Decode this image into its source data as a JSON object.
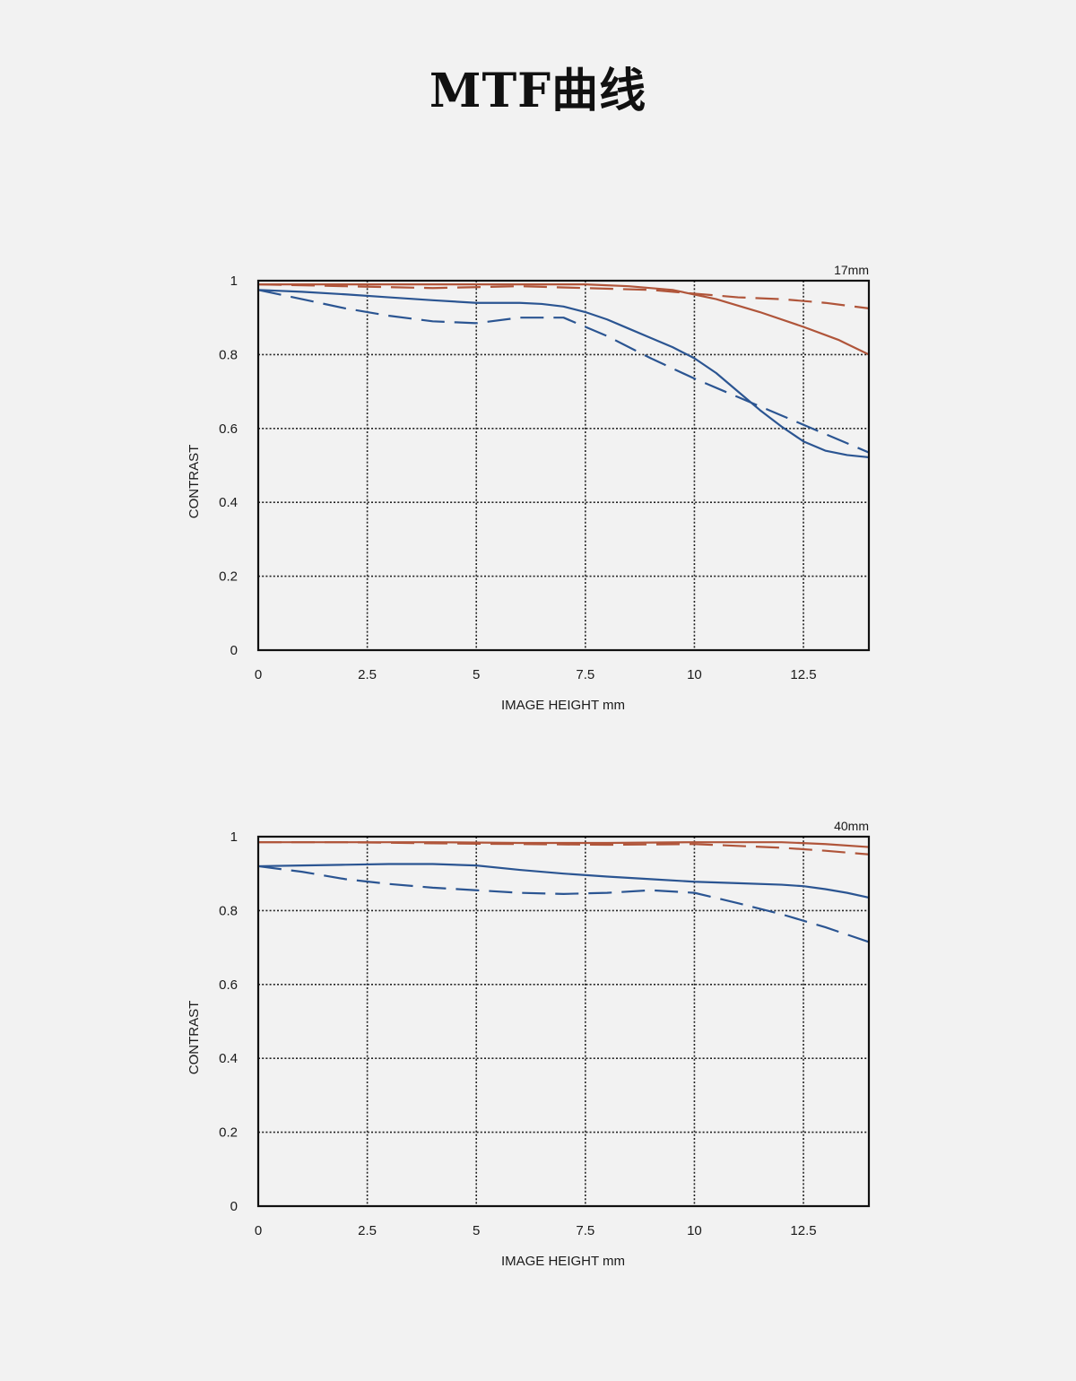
{
  "page": {
    "title": "MTF曲线"
  },
  "colors": {
    "sagittal_red": "#b0553a",
    "meridional_blue": "#2b5592",
    "frame": "#111111",
    "grid": "#222222"
  },
  "chart_data": [
    {
      "type": "line",
      "id": "17mm",
      "title": "17mm",
      "xlabel": "IMAGE HEIGHT  mm",
      "ylabel": "CONTRAST",
      "xlim": [
        0,
        14
      ],
      "ylim": [
        0,
        1
      ],
      "xticks": [
        0,
        2.5,
        5,
        7.5,
        10,
        12.5
      ],
      "xtick_labels": [
        "0",
        "2.5",
        "5",
        "7.5",
        "10",
        "12.5"
      ],
      "yticks": [
        0,
        0.2,
        0.4,
        0.6,
        0.8,
        1
      ],
      "ytick_labels": [
        "0",
        "0.2",
        "0.4",
        "0.6",
        "0.8",
        "1"
      ],
      "grid": true,
      "series": [
        {
          "color": "#b0553a",
          "dash": false,
          "x": [
            0,
            2,
            4,
            6,
            7.5,
            8.5,
            9.5,
            10.5,
            11.5,
            12.5,
            13.3,
            14
          ],
          "y": [
            0.99,
            0.99,
            0.99,
            0.99,
            0.99,
            0.985,
            0.975,
            0.95,
            0.915,
            0.875,
            0.84,
            0.8
          ]
        },
        {
          "color": "#b0553a",
          "dash": true,
          "x": [
            0,
            2,
            4,
            6,
            7.5,
            9,
            10,
            11,
            12,
            13,
            14
          ],
          "y": [
            0.99,
            0.985,
            0.98,
            0.985,
            0.98,
            0.975,
            0.965,
            0.955,
            0.95,
            0.94,
            0.925
          ]
        },
        {
          "color": "#2b5592",
          "dash": false,
          "x": [
            0,
            1,
            2,
            3,
            4,
            5,
            6,
            6.5,
            7,
            7.5,
            8,
            8.5,
            9,
            9.5,
            10,
            10.5,
            11,
            11.5,
            12,
            12.5,
            13,
            13.5,
            14
          ],
          "y": [
            0.975,
            0.97,
            0.963,
            0.955,
            0.947,
            0.94,
            0.94,
            0.937,
            0.93,
            0.915,
            0.895,
            0.87,
            0.845,
            0.82,
            0.79,
            0.75,
            0.7,
            0.65,
            0.605,
            0.565,
            0.54,
            0.528,
            0.522
          ]
        },
        {
          "color": "#2b5592",
          "dash": true,
          "x": [
            0,
            1,
            2,
            3,
            4,
            5,
            6,
            7,
            8,
            9,
            10,
            11,
            12,
            13,
            14
          ],
          "y": [
            0.975,
            0.95,
            0.925,
            0.905,
            0.89,
            0.885,
            0.9,
            0.9,
            0.85,
            0.79,
            0.735,
            0.685,
            0.635,
            0.585,
            0.535
          ]
        }
      ]
    },
    {
      "type": "line",
      "id": "40mm",
      "title": "40mm",
      "xlabel": "IMAGE HEIGHT  mm",
      "ylabel": "CONTRAST",
      "xlim": [
        0,
        14
      ],
      "ylim": [
        0,
        1
      ],
      "xticks": [
        0,
        2.5,
        5,
        7.5,
        10,
        12.5
      ],
      "xtick_labels": [
        "0",
        "2.5",
        "5",
        "7.5",
        "10",
        "12.5"
      ],
      "yticks": [
        0,
        0.2,
        0.4,
        0.6,
        0.8,
        1
      ],
      "ytick_labels": [
        "0",
        "0.2",
        "0.4",
        "0.6",
        "0.8",
        "1"
      ],
      "grid": true,
      "series": [
        {
          "color": "#b0553a",
          "dash": false,
          "x": [
            0,
            2,
            4,
            6,
            8,
            10,
            11,
            12,
            13,
            14
          ],
          "y": [
            0.985,
            0.985,
            0.985,
            0.983,
            0.983,
            0.985,
            0.985,
            0.985,
            0.98,
            0.972
          ]
        },
        {
          "color": "#b0553a",
          "dash": true,
          "x": [
            0,
            2,
            4,
            6,
            8,
            10,
            11,
            12,
            13,
            14
          ],
          "y": [
            0.985,
            0.985,
            0.982,
            0.98,
            0.978,
            0.98,
            0.975,
            0.97,
            0.962,
            0.952
          ]
        },
        {
          "color": "#2b5592",
          "dash": false,
          "x": [
            0,
            1,
            2,
            3,
            4,
            5,
            6,
            7,
            8,
            9,
            10,
            11,
            12,
            12.5,
            13,
            13.5,
            14
          ],
          "y": [
            0.92,
            0.922,
            0.924,
            0.926,
            0.926,
            0.922,
            0.91,
            0.9,
            0.892,
            0.885,
            0.878,
            0.874,
            0.87,
            0.866,
            0.858,
            0.848,
            0.835
          ]
        },
        {
          "color": "#2b5592",
          "dash": true,
          "x": [
            0,
            1,
            2,
            3,
            4,
            5,
            6,
            7,
            8,
            9,
            10,
            11,
            12,
            13,
            14
          ],
          "y": [
            0.92,
            0.905,
            0.885,
            0.872,
            0.862,
            0.855,
            0.848,
            0.845,
            0.848,
            0.855,
            0.848,
            0.82,
            0.79,
            0.755,
            0.715
          ]
        }
      ]
    }
  ]
}
